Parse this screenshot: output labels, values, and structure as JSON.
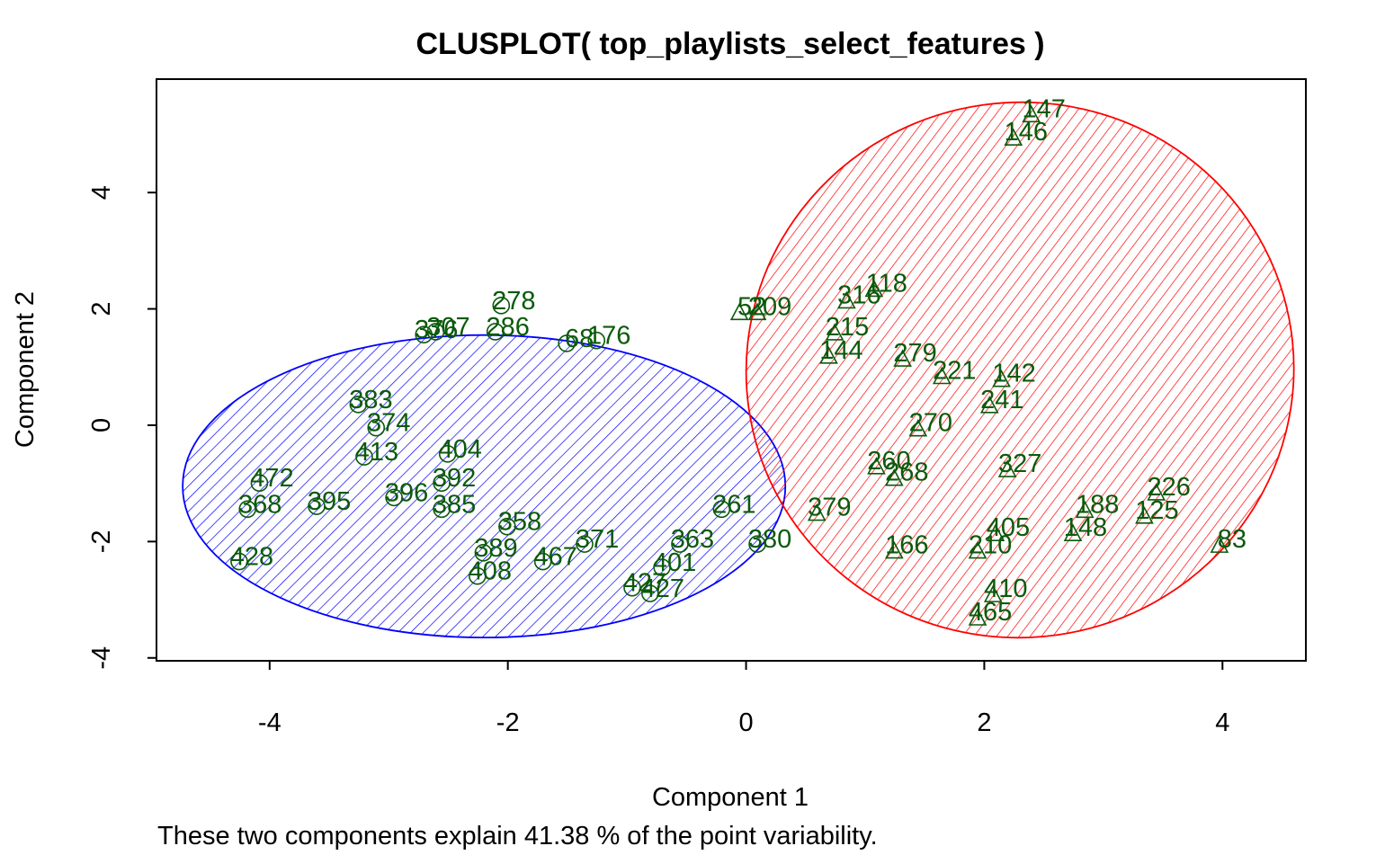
{
  "chart_data": {
    "type": "scatter",
    "title": "CLUSPLOT( top_playlists_select_features )",
    "xlabel": "Component 1",
    "ylabel": "Component 2",
    "caption": "These two components explain 41.38 % of the point variability.",
    "xlim": [
      -4.95,
      4.7
    ],
    "ylim": [
      -4.05,
      5.95
    ],
    "x_ticks": [
      -4,
      -2,
      0,
      2,
      4
    ],
    "y_ticks": [
      -4,
      -2,
      0,
      2,
      4
    ],
    "x_tick_labels": [
      "-4",
      "-2",
      "0",
      "2",
      "4"
    ],
    "y_tick_labels": [
      "-4",
      "-2",
      "0",
      "2",
      "4"
    ],
    "colors": {
      "cluster_1": "#0000ff",
      "cluster_2": "#ff0000",
      "points": "#0b5a0b",
      "axes": "#000000"
    },
    "clusters": [
      {
        "id": 1,
        "color": "#0000ff",
        "marker": "circle",
        "center": [
          -2.2,
          -1.05
        ],
        "radius_x": 2.53,
        "radius_y": 2.6
      },
      {
        "id": 2,
        "color": "#ff0000",
        "marker": "triangle",
        "center": [
          2.3,
          0.95
        ],
        "radius_x": 2.3,
        "radius_y": 4.6,
        "angle": -8
      }
    ],
    "labeled_points": [
      {
        "label": "472",
        "x": -3.98,
        "y": -0.9,
        "cluster": 1
      },
      {
        "label": "368",
        "x": -4.08,
        "y": -1.35,
        "cluster": 1
      },
      {
        "label": "428",
        "x": -4.15,
        "y": -2.25,
        "cluster": 1
      },
      {
        "label": "395",
        "x": -3.5,
        "y": -1.3,
        "cluster": 1
      },
      {
        "label": "383",
        "x": -3.15,
        "y": 0.45,
        "cluster": 1
      },
      {
        "label": "374",
        "x": -3.0,
        "y": 0.05,
        "cluster": 1
      },
      {
        "label": "413",
        "x": -3.1,
        "y": -0.45,
        "cluster": 1
      },
      {
        "label": "396",
        "x": -2.85,
        "y": -1.15,
        "cluster": 1
      },
      {
        "label": "392",
        "x": -2.45,
        "y": -0.9,
        "cluster": 1
      },
      {
        "label": "385",
        "x": -2.45,
        "y": -1.35,
        "cluster": 1
      },
      {
        "label": "404",
        "x": -2.4,
        "y": -0.4,
        "cluster": 1
      },
      {
        "label": "389",
        "x": -2.1,
        "y": -2.1,
        "cluster": 1
      },
      {
        "label": "408",
        "x": -2.15,
        "y": -2.5,
        "cluster": 1
      },
      {
        "label": "358",
        "x": -1.9,
        "y": -1.65,
        "cluster": 1
      },
      {
        "label": "467",
        "x": -1.6,
        "y": -2.25,
        "cluster": 1
      },
      {
        "label": "371",
        "x": -1.25,
        "y": -1.95,
        "cluster": 1
      },
      {
        "label": "363",
        "x": -0.45,
        "y": -1.95,
        "cluster": 1
      },
      {
        "label": "380",
        "x": 0.2,
        "y": -1.95,
        "cluster": 1
      },
      {
        "label": "401",
        "x": -0.6,
        "y": -2.35,
        "cluster": 1
      },
      {
        "label": "427",
        "x": -0.85,
        "y": -2.7,
        "cluster": 1
      },
      {
        "label": "427",
        "x": -0.7,
        "y": -2.8,
        "cluster": 1
      },
      {
        "label": "261",
        "x": -0.1,
        "y": -1.35,
        "cluster": 1
      },
      {
        "label": "376",
        "x": -2.6,
        "y": 1.65,
        "cluster": 1
      },
      {
        "label": "307",
        "x": -2.5,
        "y": 1.7,
        "cluster": 1
      },
      {
        "label": "286",
        "x": -2.0,
        "y": 1.7,
        "cluster": 1
      },
      {
        "label": "278",
        "x": -1.95,
        "y": 2.15,
        "cluster": 1
      },
      {
        "label": "68",
        "x": -1.4,
        "y": 1.5,
        "cluster": 1
      },
      {
        "label": "176",
        "x": -1.15,
        "y": 1.55,
        "cluster": 1
      },
      {
        "label": "316",
        "x": 0.95,
        "y": 2.25,
        "cluster": 2
      },
      {
        "label": "118",
        "x": 1.18,
        "y": 2.45,
        "cluster": 2
      },
      {
        "label": "215",
        "x": 0.85,
        "y": 1.7,
        "cluster": 2
      },
      {
        "label": "52",
        "x": 0.05,
        "y": 2.05,
        "cluster": 2
      },
      {
        "label": "209",
        "x": 0.2,
        "y": 2.05,
        "cluster": 2
      },
      {
        "label": "144",
        "x": 0.8,
        "y": 1.3,
        "cluster": 2
      },
      {
        "label": "279",
        "x": 1.42,
        "y": 1.25,
        "cluster": 2
      },
      {
        "label": "221",
        "x": 1.75,
        "y": 0.95,
        "cluster": 2
      },
      {
        "label": "241",
        "x": 2.15,
        "y": 0.45,
        "cluster": 2
      },
      {
        "label": "410",
        "x": 2.18,
        "y": -2.8,
        "cluster": 2
      },
      {
        "label": "465",
        "x": 2.05,
        "y": -3.2,
        "cluster": 2
      },
      {
        "label": "405",
        "x": 2.2,
        "y": -1.75,
        "cluster": 2
      },
      {
        "label": "210",
        "x": 2.05,
        "y": -2.05,
        "cluster": 2
      },
      {
        "label": "166",
        "x": 1.35,
        "y": -2.05,
        "cluster": 2
      },
      {
        "label": "379",
        "x": 0.7,
        "y": -1.4,
        "cluster": 2
      },
      {
        "label": "327",
        "x": 2.3,
        "y": -0.65,
        "cluster": 2
      },
      {
        "label": "268",
        "x": 1.35,
        "y": -0.8,
        "cluster": 2
      },
      {
        "label": "188",
        "x": 2.95,
        "y": -1.35,
        "cluster": 2
      },
      {
        "label": "148",
        "x": 2.85,
        "y": -1.75,
        "cluster": 2
      },
      {
        "label": "226",
        "x": 3.55,
        "y": -1.05,
        "cluster": 2
      },
      {
        "label": "125",
        "x": 3.45,
        "y": -1.45,
        "cluster": 2
      },
      {
        "label": "83",
        "x": 4.08,
        "y": -1.95,
        "cluster": 2
      },
      {
        "label": "147",
        "x": 2.5,
        "y": 5.45,
        "cluster": 2
      },
      {
        "label": "146",
        "x": 2.35,
        "y": 5.05,
        "cluster": 2
      },
      {
        "label": "142",
        "x": 2.25,
        "y": 0.9,
        "cluster": 2
      },
      {
        "label": "270",
        "x": 1.55,
        "y": 0.05,
        "cluster": 2
      },
      {
        "label": "260",
        "x": 1.2,
        "y": -0.6,
        "cluster": 2
      }
    ]
  }
}
